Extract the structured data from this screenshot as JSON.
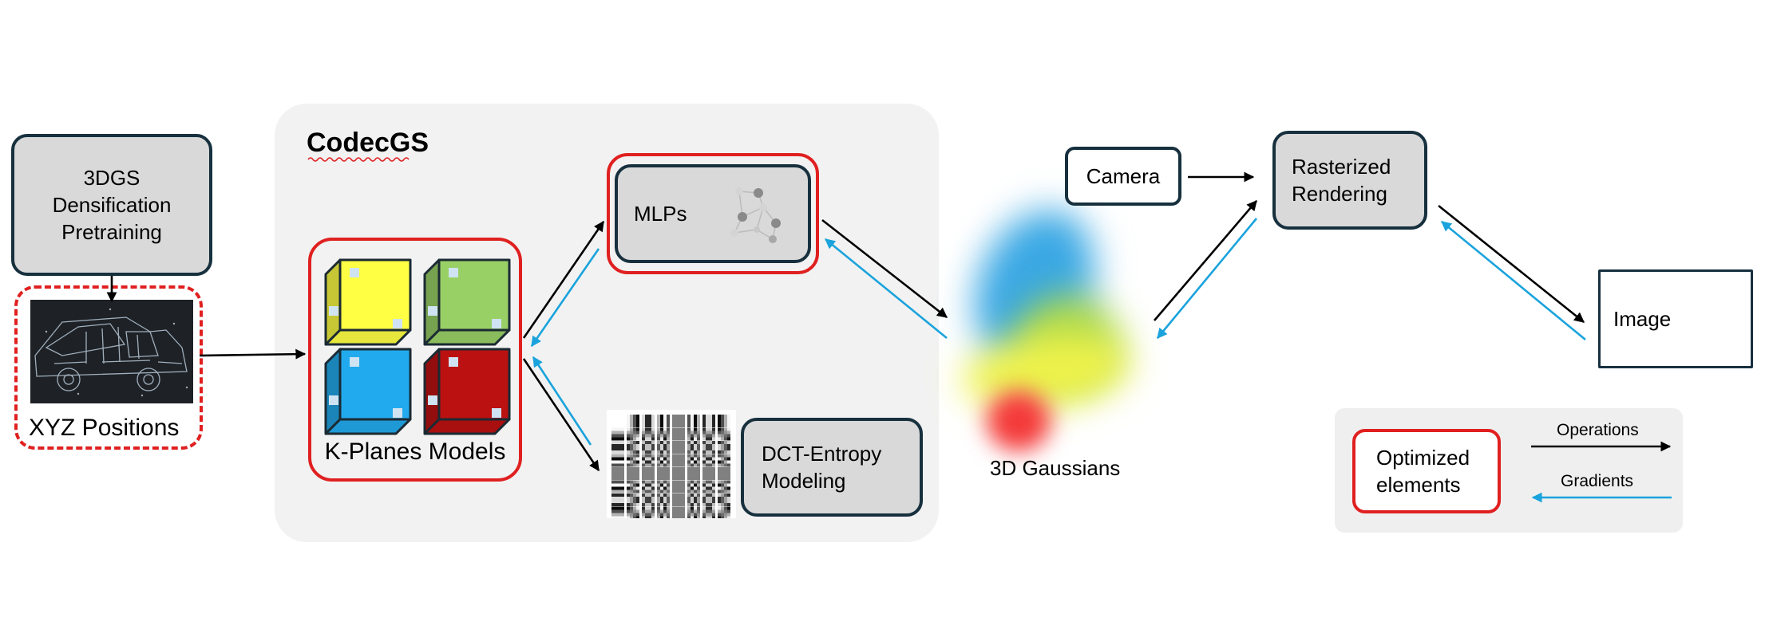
{
  "pretraining": {
    "line1": "3DGS",
    "line2": "Densification",
    "line3": "Pretraining"
  },
  "xyz": {
    "label": "XYZ Positions"
  },
  "codec": {
    "title": "CodecGS"
  },
  "kplanes": {
    "label": "K-Planes Models"
  },
  "mlps": {
    "label": "MLPs"
  },
  "dct": {
    "line1": "DCT-Entropy",
    "line2": "Modeling"
  },
  "gaussians": {
    "label": "3D Gaussians"
  },
  "camera": {
    "label": "Camera"
  },
  "raster": {
    "line1": "Rasterized",
    "line2": "Rendering"
  },
  "image_box": {
    "label": "Image"
  },
  "legend": {
    "optimized_line1": "Optimized",
    "optimized_line2": "elements",
    "operations": "Operations",
    "gradients": "Gradients"
  },
  "colors": {
    "box_fill": "#d9d9d9",
    "box_border": "#17303e",
    "optimized_red": "#e02020",
    "gradient_blue": "#1aa3dc",
    "operation_black": "#000000",
    "panel": "#f2f2f2",
    "cube_yellow": "#ffff44",
    "cube_green": "#99d066",
    "cube_blue": "#22aaee",
    "cube_red": "#bb1111"
  }
}
